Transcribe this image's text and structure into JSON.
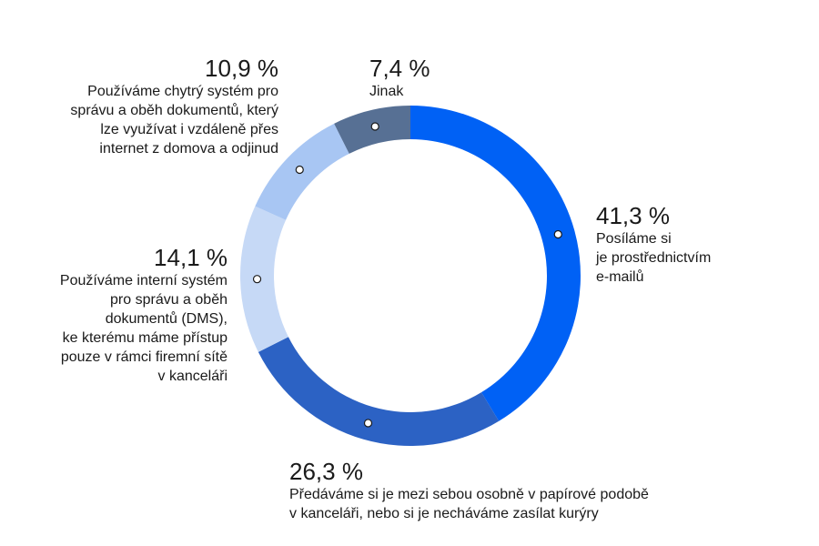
{
  "chart_data": {
    "type": "pie",
    "variant": "donut",
    "start_angle": "12 o'clock",
    "direction": "clockwise",
    "slices": [
      {
        "value": 41.3,
        "value_label": "41,3 %",
        "label": "Posíláme si je prostřednictvím e-mailů",
        "color": "#0061f5"
      },
      {
        "value": 26.3,
        "value_label": "26,3 %",
        "label": "Předáváme si je mezi sebou osobně v papírové podobě v kanceláři, nebo si je necháváme zasílat kurýry",
        "color": "#2c62c4"
      },
      {
        "value": 14.1,
        "value_label": "14,1 %",
        "label": "Používáme interní systém pro správu a oběh dokumentů (DMS), ke kterému máme přístup pouze v rámci firemní sítě v kanceláři",
        "color": "#c6d9f6"
      },
      {
        "value": 10.9,
        "value_label": "10,9 %",
        "label": "Používáme chytrý systém pro správu a oběh dokumentů, který lze využívat i vzdáleně přes internet z domova a odjinud",
        "color": "#a8c6f3"
      },
      {
        "value": 7.4,
        "value_label": "7,4 %",
        "label": "Jinak",
        "color": "#577094"
      }
    ]
  },
  "labels": {
    "email": {
      "pct": "41,3 %",
      "lines": [
        "Posíláme si",
        "je prostřednictvím",
        "e-mailů"
      ]
    },
    "paper": {
      "pct": "26,3 %",
      "lines": [
        "Předáváme si je mezi sebou osobně v papírové podobě",
        "v kanceláři, nebo si je necháváme zasílat kurýry"
      ]
    },
    "dms": {
      "pct": "14,1 %",
      "lines": [
        "Používáme interní systém",
        "pro správu a oběh",
        "dokumentů (DMS),",
        "ke kterému máme přístup",
        "pouze v rámci firemní sítě",
        "v kanceláři"
      ]
    },
    "smart": {
      "pct": "10,9 %",
      "lines": [
        "Používáme chytrý systém pro",
        "správu a oběh dokumentů, který",
        "lze využívat i vzdáleně přes",
        "internet z domova a odjinud"
      ]
    },
    "other": {
      "pct": "7,4 %",
      "lines": [
        "Jinak"
      ]
    }
  }
}
